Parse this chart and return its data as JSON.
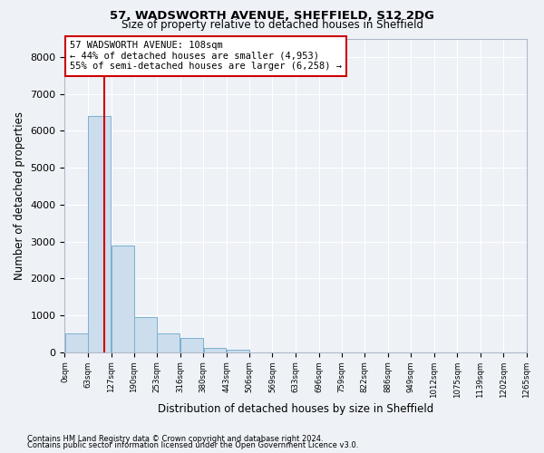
{
  "title1": "57, WADSWORTH AVENUE, SHEFFIELD, S12 2DG",
  "title2": "Size of property relative to detached houses in Sheffield",
  "xlabel": "Distribution of detached houses by size in Sheffield",
  "ylabel": "Number of detached properties",
  "footnote1": "Contains HM Land Registry data © Crown copyright and database right 2024.",
  "footnote2": "Contains public sector information licensed under the Open Government Licence v3.0.",
  "annotation_line1": "57 WADSWORTH AVENUE: 108sqm",
  "annotation_line2": "← 44% of detached houses are smaller (4,953)",
  "annotation_line3": "55% of semi-detached houses are larger (6,258) →",
  "property_size": 108,
  "bar_left_edges": [
    0,
    63,
    127,
    190,
    253,
    316,
    380,
    443,
    506,
    569,
    633,
    696,
    759,
    822,
    886,
    949,
    1012,
    1075,
    1139,
    1202
  ],
  "bar_heights": [
    500,
    6400,
    2900,
    950,
    500,
    380,
    130,
    60,
    0,
    0,
    0,
    0,
    0,
    0,
    0,
    0,
    0,
    0,
    0,
    0
  ],
  "bin_width": 63,
  "ylim": [
    0,
    8500
  ],
  "yticks": [
    0,
    1000,
    2000,
    3000,
    4000,
    5000,
    6000,
    7000,
    8000
  ],
  "bar_color": "#ccdded",
  "bar_edge_color": "#7ab0d0",
  "vline_color": "#cc0000",
  "annotation_box_color": "#cc0000",
  "background_color": "#eef2f7",
  "grid_color": "#ffffff",
  "tick_labels": [
    "0sqm",
    "63sqm",
    "127sqm",
    "190sqm",
    "253sqm",
    "316sqm",
    "380sqm",
    "443sqm",
    "506sqm",
    "569sqm",
    "633sqm",
    "696sqm",
    "759sqm",
    "822sqm",
    "886sqm",
    "949sqm",
    "1012sqm",
    "1075sqm",
    "1139sqm",
    "1202sqm",
    "1265sqm"
  ]
}
